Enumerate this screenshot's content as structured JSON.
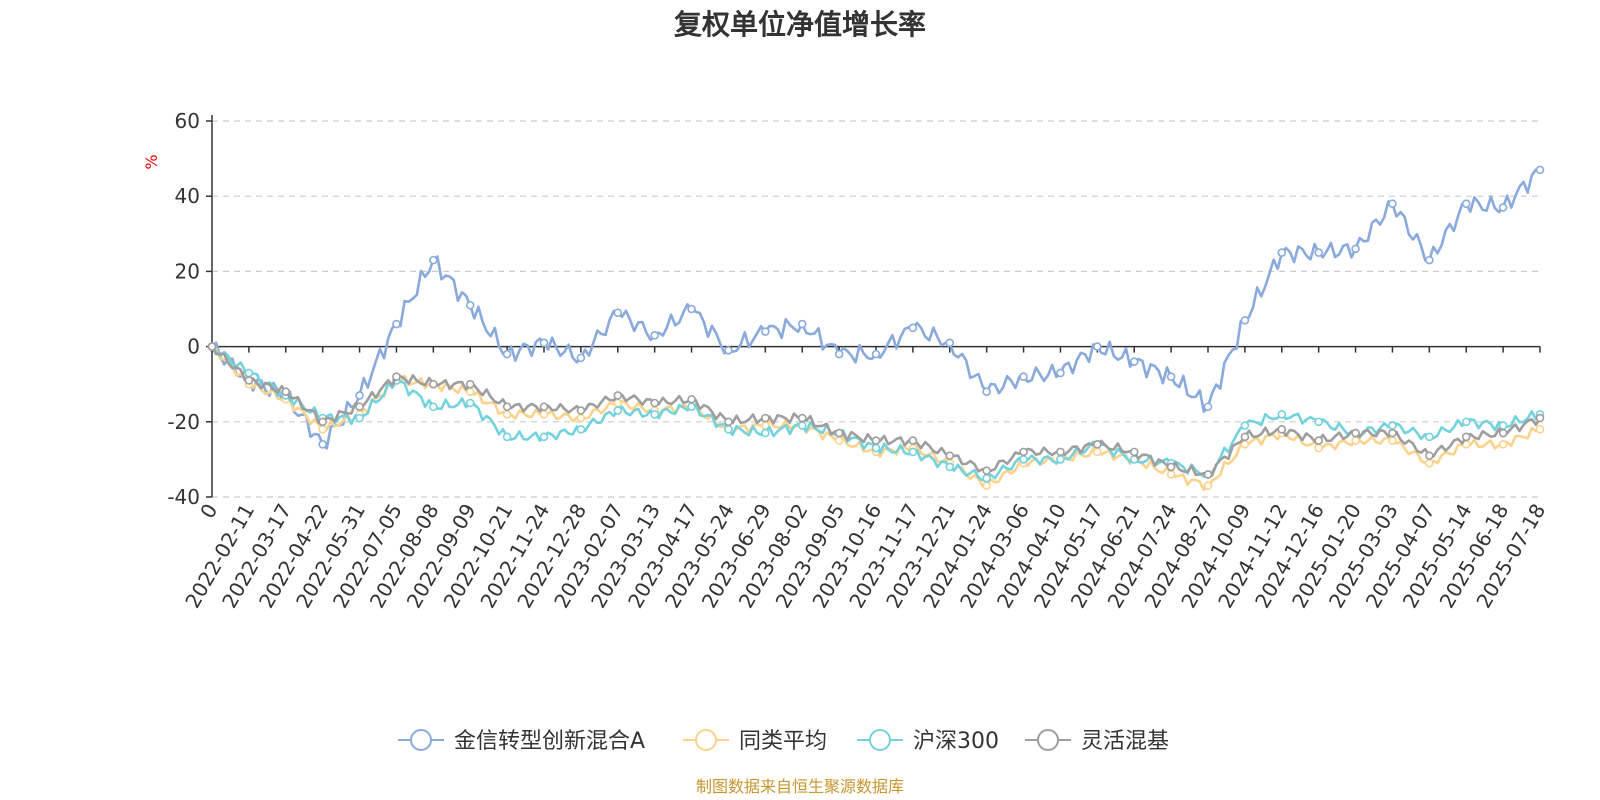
{
  "chart_data": {
    "type": "line",
    "title": "复权单位净值增长率",
    "y_unit": "%",
    "ylim": [
      -40,
      60
    ],
    "y_ticks": [
      60,
      40,
      20,
      0,
      -20,
      -40
    ],
    "x_labels": [
      "0",
      "2022-02-11",
      "2022-03-17",
      "2022-04-22",
      "2022-05-31",
      "2022-07-05",
      "2022-08-08",
      "2022-09-09",
      "2022-10-21",
      "2022-11-24",
      "2022-12-28",
      "2023-02-07",
      "2023-03-13",
      "2023-04-17",
      "2023-05-24",
      "2023-06-29",
      "2023-08-02",
      "2023-09-05",
      "2023-10-16",
      "2023-11-17",
      "2023-12-21",
      "2024-01-24",
      "2024-03-06",
      "2024-04-10",
      "2024-05-17",
      "2024-06-21",
      "2024-07-24",
      "2024-08-27",
      "2024-10-09",
      "2024-11-12",
      "2024-12-16",
      "2025-01-20",
      "2025-03-03",
      "2025-04-07",
      "2025-05-14",
      "2025-06-18",
      "2025-07-18"
    ],
    "grid": "horizontal-dashed",
    "legend_position": "bottom",
    "series": [
      {
        "name": "金信转型创新混合A",
        "color": "#8aaadc",
        "values": [
          0,
          -9,
          -13,
          -26,
          -13,
          6,
          23,
          11,
          -2,
          1,
          -3,
          9,
          3,
          10,
          -1,
          4,
          6,
          -2,
          -2,
          5,
          1,
          -12,
          -8,
          -7,
          0,
          -4,
          -8,
          -16,
          7,
          25,
          25,
          26,
          38,
          23,
          38,
          37,
          47
        ]
      },
      {
        "name": "同类平均",
        "color": "#fbd38d",
        "values": [
          0,
          -10,
          -14,
          -22,
          -18,
          -9,
          -10,
          -12,
          -18,
          -18,
          -19,
          -15,
          -17,
          -16,
          -22,
          -21,
          -21,
          -25,
          -28,
          -27,
          -31,
          -37,
          -31,
          -30,
          -28,
          -30,
          -34,
          -37,
          -26,
          -23,
          -27,
          -25,
          -25,
          -31,
          -26,
          -26,
          -22
        ]
      },
      {
        "name": "沪深300",
        "color": "#74d2dc",
        "values": [
          0,
          -7,
          -13,
          -19,
          -19,
          -9,
          -16,
          -15,
          -24,
          -24,
          -22,
          -17,
          -18,
          -16,
          -22,
          -23,
          -21,
          -23,
          -27,
          -28,
          -32,
          -35,
          -30,
          -30,
          -26,
          -30,
          -31,
          -34,
          -21,
          -18,
          -20,
          -23,
          -21,
          -24,
          -20,
          -21,
          -18
        ]
      },
      {
        "name": "灵活混基",
        "color": "#9e9e9e",
        "values": [
          0,
          -9,
          -12,
          -20,
          -16,
          -8,
          -10,
          -10,
          -16,
          -16,
          -17,
          -13,
          -15,
          -14,
          -20,
          -19,
          -19,
          -23,
          -25,
          -25,
          -29,
          -33,
          -28,
          -28,
          -26,
          -28,
          -32,
          -34,
          -24,
          -22,
          -25,
          -23,
          -23,
          -29,
          -24,
          -23,
          -19
        ]
      }
    ]
  },
  "footer": {
    "source": "制图数据来自恒生聚源数据库"
  }
}
